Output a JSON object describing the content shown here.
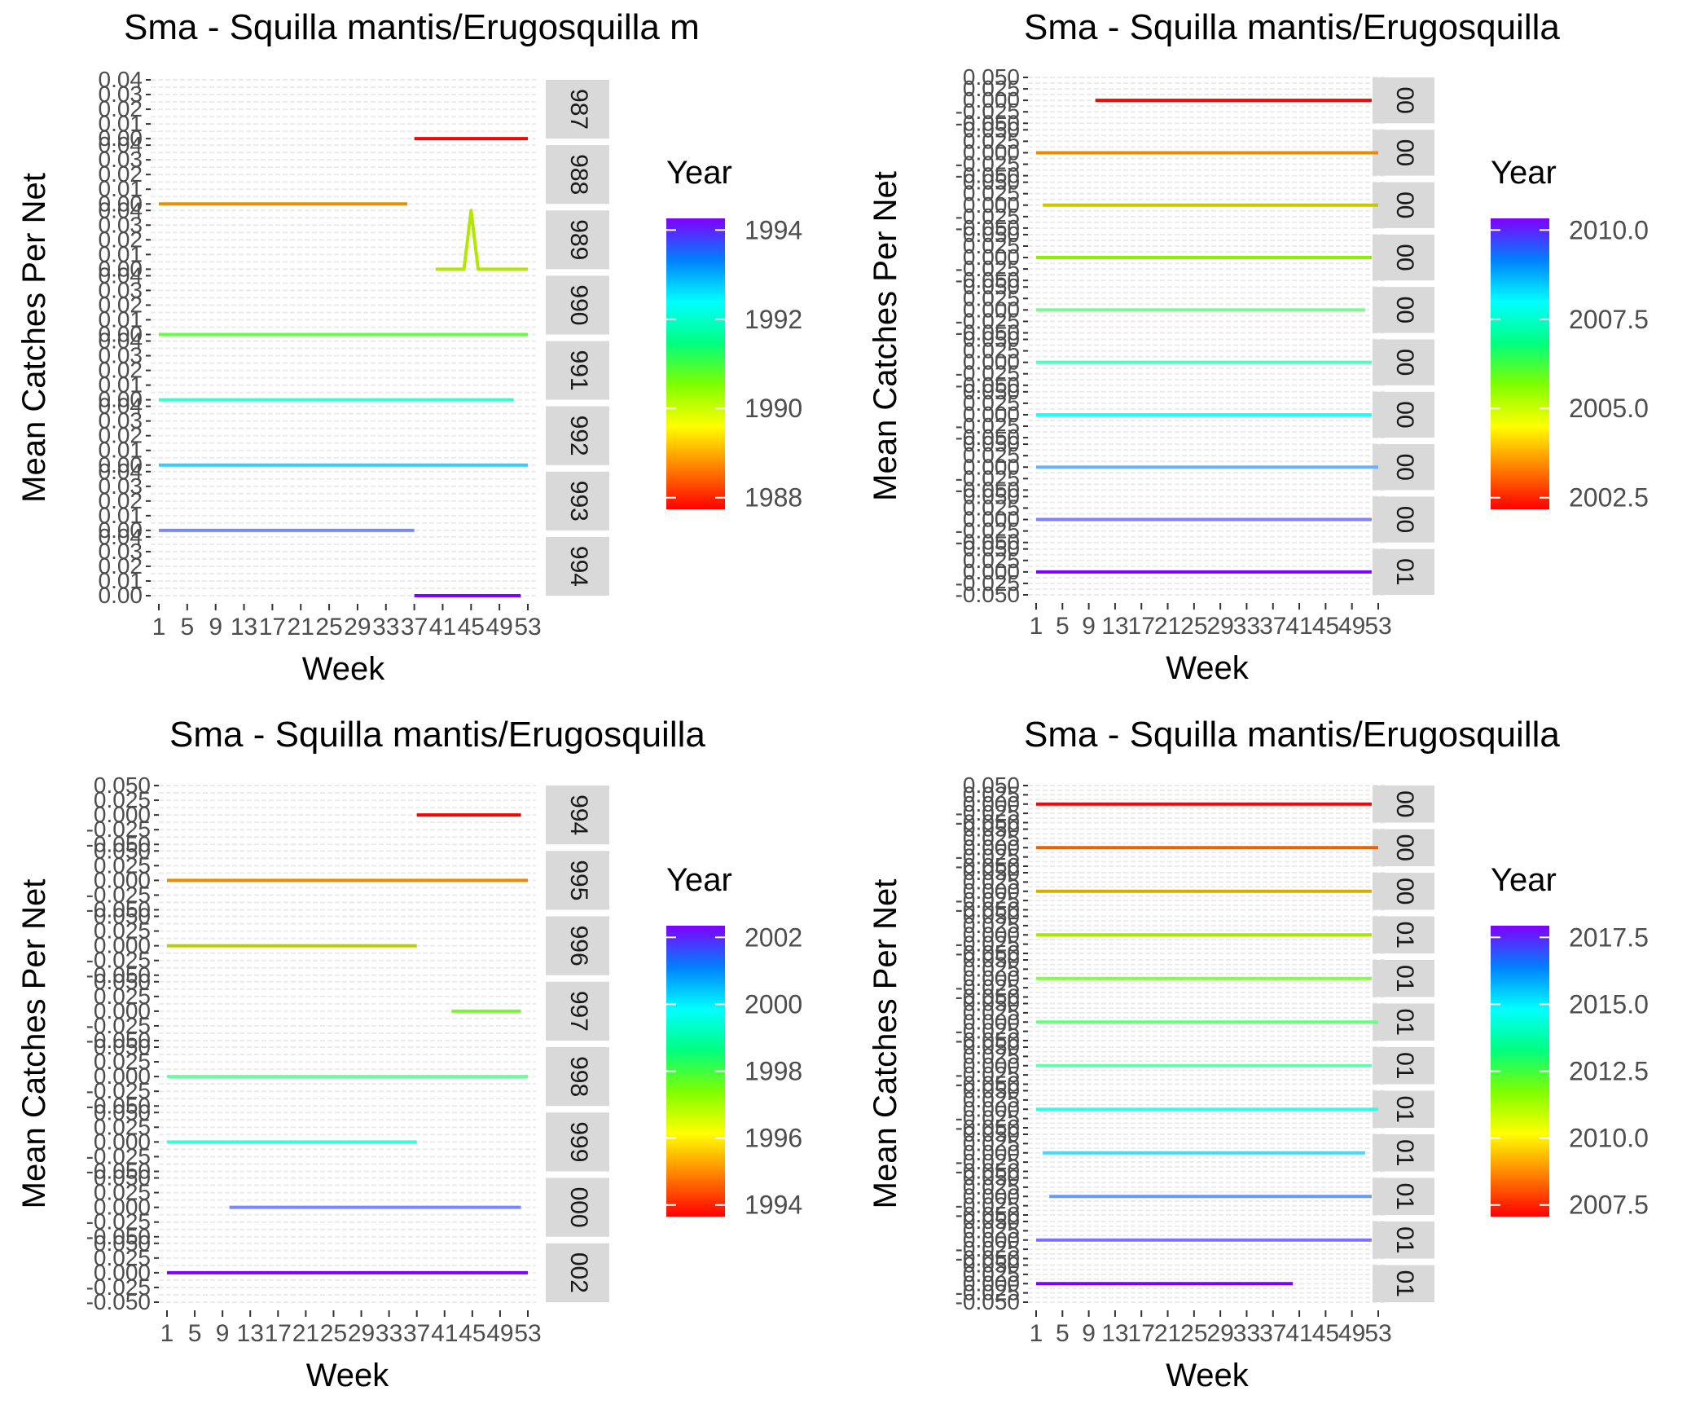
{
  "figure": {
    "background": "#ffffff"
  },
  "chart_data": [
    {
      "type": "line",
      "title": "Sma - Squilla mantis/Erugosquilla m",
      "xlabel": "Week",
      "ylabel": "Mean Catches Per Net",
      "x_ticks": [
        "1",
        "5",
        "9",
        "13",
        "17",
        "21",
        "25",
        "29",
        "33",
        "37",
        "41",
        "45",
        "49",
        "53"
      ],
      "xlim": [
        1,
        53
      ],
      "y_ticks": [
        "0.00",
        "0.01",
        "0.02",
        "0.03",
        "0.04"
      ],
      "ylim": [
        0,
        0.04
      ],
      "legend": {
        "title": "Year",
        "labels": [
          "1994",
          "1992",
          "1990",
          "1988"
        ],
        "position": "right"
      },
      "series": [
        {
          "strip": "987",
          "color": "#ff0000",
          "x": [
            37,
            53
          ],
          "y": [
            0,
            0
          ]
        },
        {
          "strip": "988",
          "color": "#e99100",
          "x": [
            1,
            36
          ],
          "y": [
            0,
            0
          ]
        },
        {
          "strip": "989",
          "color": "#b3e600",
          "x": [
            40,
            44,
            45,
            46,
            53
          ],
          "y": [
            0,
            0,
            0.04,
            0,
            0
          ]
        },
        {
          "strip": "990",
          "color": "#66ff40",
          "x": [
            1,
            53
          ],
          "y": [
            0,
            0
          ]
        },
        {
          "strip": "991",
          "color": "#33ffcc",
          "x": [
            1,
            51
          ],
          "y": [
            0,
            0
          ]
        },
        {
          "strip": "992",
          "color": "#33ccff",
          "x": [
            1,
            53
          ],
          "y": [
            0,
            0
          ]
        },
        {
          "strip": "993",
          "color": "#7a88ff",
          "x": [
            1,
            37
          ],
          "y": [
            0,
            0
          ]
        },
        {
          "strip": "994",
          "color": "#7f00ff",
          "x": [
            37,
            52
          ],
          "y": [
            0,
            0
          ]
        }
      ]
    },
    {
      "type": "line",
      "title": "Sma - Squilla mantis/Erugosquilla",
      "xlabel": "Week",
      "ylabel": "Mean Catches Per Net",
      "x_ticks": [
        "1",
        "5",
        "9",
        "13",
        "17",
        "21",
        "25",
        "29",
        "33",
        "37",
        "41",
        "45",
        "49",
        "53"
      ],
      "xlim": [
        1,
        53
      ],
      "y_ticks": [
        "-0.050",
        "-0.025",
        "0.000",
        "0.025",
        "0.050"
      ],
      "ylim": [
        -0.05,
        0.05
      ],
      "legend": {
        "title": "Year",
        "labels": [
          "2010.0",
          "2007.5",
          "2005.0",
          "2002.5"
        ],
        "position": "right"
      },
      "series": [
        {
          "strip": "00",
          "color": "#ff0000",
          "x": [
            10,
            52
          ],
          "y": [
            0,
            0
          ]
        },
        {
          "strip": "00",
          "color": "#e98a00",
          "x": [
            1,
            53
          ],
          "y": [
            0,
            0
          ]
        },
        {
          "strip": "00",
          "color": "#c8c800",
          "x": [
            2,
            53
          ],
          "y": [
            0,
            0
          ]
        },
        {
          "strip": "00",
          "color": "#8cf000",
          "x": [
            1,
            52
          ],
          "y": [
            0,
            0
          ]
        },
        {
          "strip": "00",
          "color": "#7afa8c",
          "x": [
            1,
            51
          ],
          "y": [
            0,
            0
          ]
        },
        {
          "strip": "00",
          "color": "#4dffbf",
          "x": [
            1,
            52
          ],
          "y": [
            0,
            0
          ]
        },
        {
          "strip": "00",
          "color": "#1affff",
          "x": [
            1,
            52
          ],
          "y": [
            0,
            0
          ]
        },
        {
          "strip": "00",
          "color": "#66b3ff",
          "x": [
            1,
            53
          ],
          "y": [
            0,
            0
          ]
        },
        {
          "strip": "00",
          "color": "#8080ff",
          "x": [
            1,
            52
          ],
          "y": [
            0,
            0
          ]
        },
        {
          "strip": "01",
          "color": "#8000ff",
          "x": [
            1,
            52
          ],
          "y": [
            0,
            0
          ]
        }
      ]
    },
    {
      "type": "line",
      "title": "Sma - Squilla mantis/Erugosquilla",
      "xlabel": "Week",
      "ylabel": "Mean Catches Per Net",
      "x_ticks": [
        "1",
        "5",
        "9",
        "13",
        "17",
        "21",
        "25",
        "29",
        "33",
        "37",
        "41",
        "45",
        "49",
        "53"
      ],
      "xlim": [
        1,
        53
      ],
      "y_ticks": [
        "-0.050",
        "-0.025",
        "0.000",
        "0.025",
        "0.050"
      ],
      "ylim": [
        -0.05,
        0.05
      ],
      "legend": {
        "title": "Year",
        "labels": [
          "2002",
          "2000",
          "1998",
          "1996",
          "1994"
        ],
        "position": "right"
      },
      "series": [
        {
          "strip": "994",
          "color": "#ff0000",
          "x": [
            37,
            52
          ],
          "y": [
            0,
            0
          ]
        },
        {
          "strip": "995",
          "color": "#e98a00",
          "x": [
            1,
            53
          ],
          "y": [
            0,
            0
          ]
        },
        {
          "strip": "996",
          "color": "#b8d000",
          "x": [
            1,
            37
          ],
          "y": [
            0,
            0
          ]
        },
        {
          "strip": "997",
          "color": "#80f040",
          "x": [
            42,
            52
          ],
          "y": [
            0,
            0
          ]
        },
        {
          "strip": "998",
          "color": "#66ff99",
          "x": [
            1,
            53
          ],
          "y": [
            0,
            0
          ]
        },
        {
          "strip": "999",
          "color": "#33ffd9",
          "x": [
            1,
            37
          ],
          "y": [
            0,
            0
          ]
        },
        {
          "strip": "000",
          "color": "#7a88ff",
          "x": [
            10,
            52
          ],
          "y": [
            0,
            0
          ]
        },
        {
          "strip": "002",
          "color": "#8000ff",
          "x": [
            1,
            53
          ],
          "y": [
            0,
            0
          ]
        }
      ]
    },
    {
      "type": "line",
      "title": "Sma - Squilla mantis/Erugosquilla",
      "xlabel": "Week",
      "ylabel": "Mean Catches Per Net",
      "x_ticks": [
        "1",
        "5",
        "9",
        "13",
        "17",
        "21",
        "25",
        "29",
        "33",
        "37",
        "41",
        "45",
        "49",
        "53"
      ],
      "xlim": [
        1,
        53
      ],
      "y_ticks": [
        "-0.050",
        "-0.025",
        "0.000",
        "0.025",
        "0.050"
      ],
      "ylim": [
        -0.05,
        0.05
      ],
      "legend": {
        "title": "Year",
        "labels": [
          "2017.5",
          "2015.0",
          "2012.5",
          "2010.0",
          "2007.5"
        ],
        "position": "right"
      },
      "series": [
        {
          "strip": "00",
          "color": "#ff0000",
          "x": [
            1,
            52
          ],
          "y": [
            0,
            0
          ]
        },
        {
          "strip": "00",
          "color": "#e96400",
          "x": [
            1,
            53
          ],
          "y": [
            0,
            0
          ]
        },
        {
          "strip": "00",
          "color": "#d6ad00",
          "x": [
            1,
            52
          ],
          "y": [
            0,
            0
          ]
        },
        {
          "strip": "01",
          "color": "#a8e600",
          "x": [
            1,
            52
          ],
          "y": [
            0,
            0
          ]
        },
        {
          "strip": "01",
          "color": "#80ff40",
          "x": [
            1,
            52
          ],
          "y": [
            0,
            0
          ]
        },
        {
          "strip": "01",
          "color": "#66ff80",
          "x": [
            1,
            53
          ],
          "y": [
            0,
            0
          ]
        },
        {
          "strip": "01",
          "color": "#5effb3",
          "x": [
            1,
            52
          ],
          "y": [
            0,
            0
          ]
        },
        {
          "strip": "01",
          "color": "#2effe6",
          "x": [
            1,
            53
          ],
          "y": [
            0,
            0
          ]
        },
        {
          "strip": "01",
          "color": "#40d9ff",
          "x": [
            2,
            51
          ],
          "y": [
            0,
            0
          ]
        },
        {
          "strip": "01",
          "color": "#6699ff",
          "x": [
            3,
            52
          ],
          "y": [
            0,
            0
          ]
        },
        {
          "strip": "01",
          "color": "#7a70ff",
          "x": [
            1,
            52
          ],
          "y": [
            0,
            0
          ]
        },
        {
          "strip": "01",
          "color": "#8000ff",
          "x": [
            1,
            40
          ],
          "y": [
            0,
            0
          ]
        }
      ]
    }
  ]
}
